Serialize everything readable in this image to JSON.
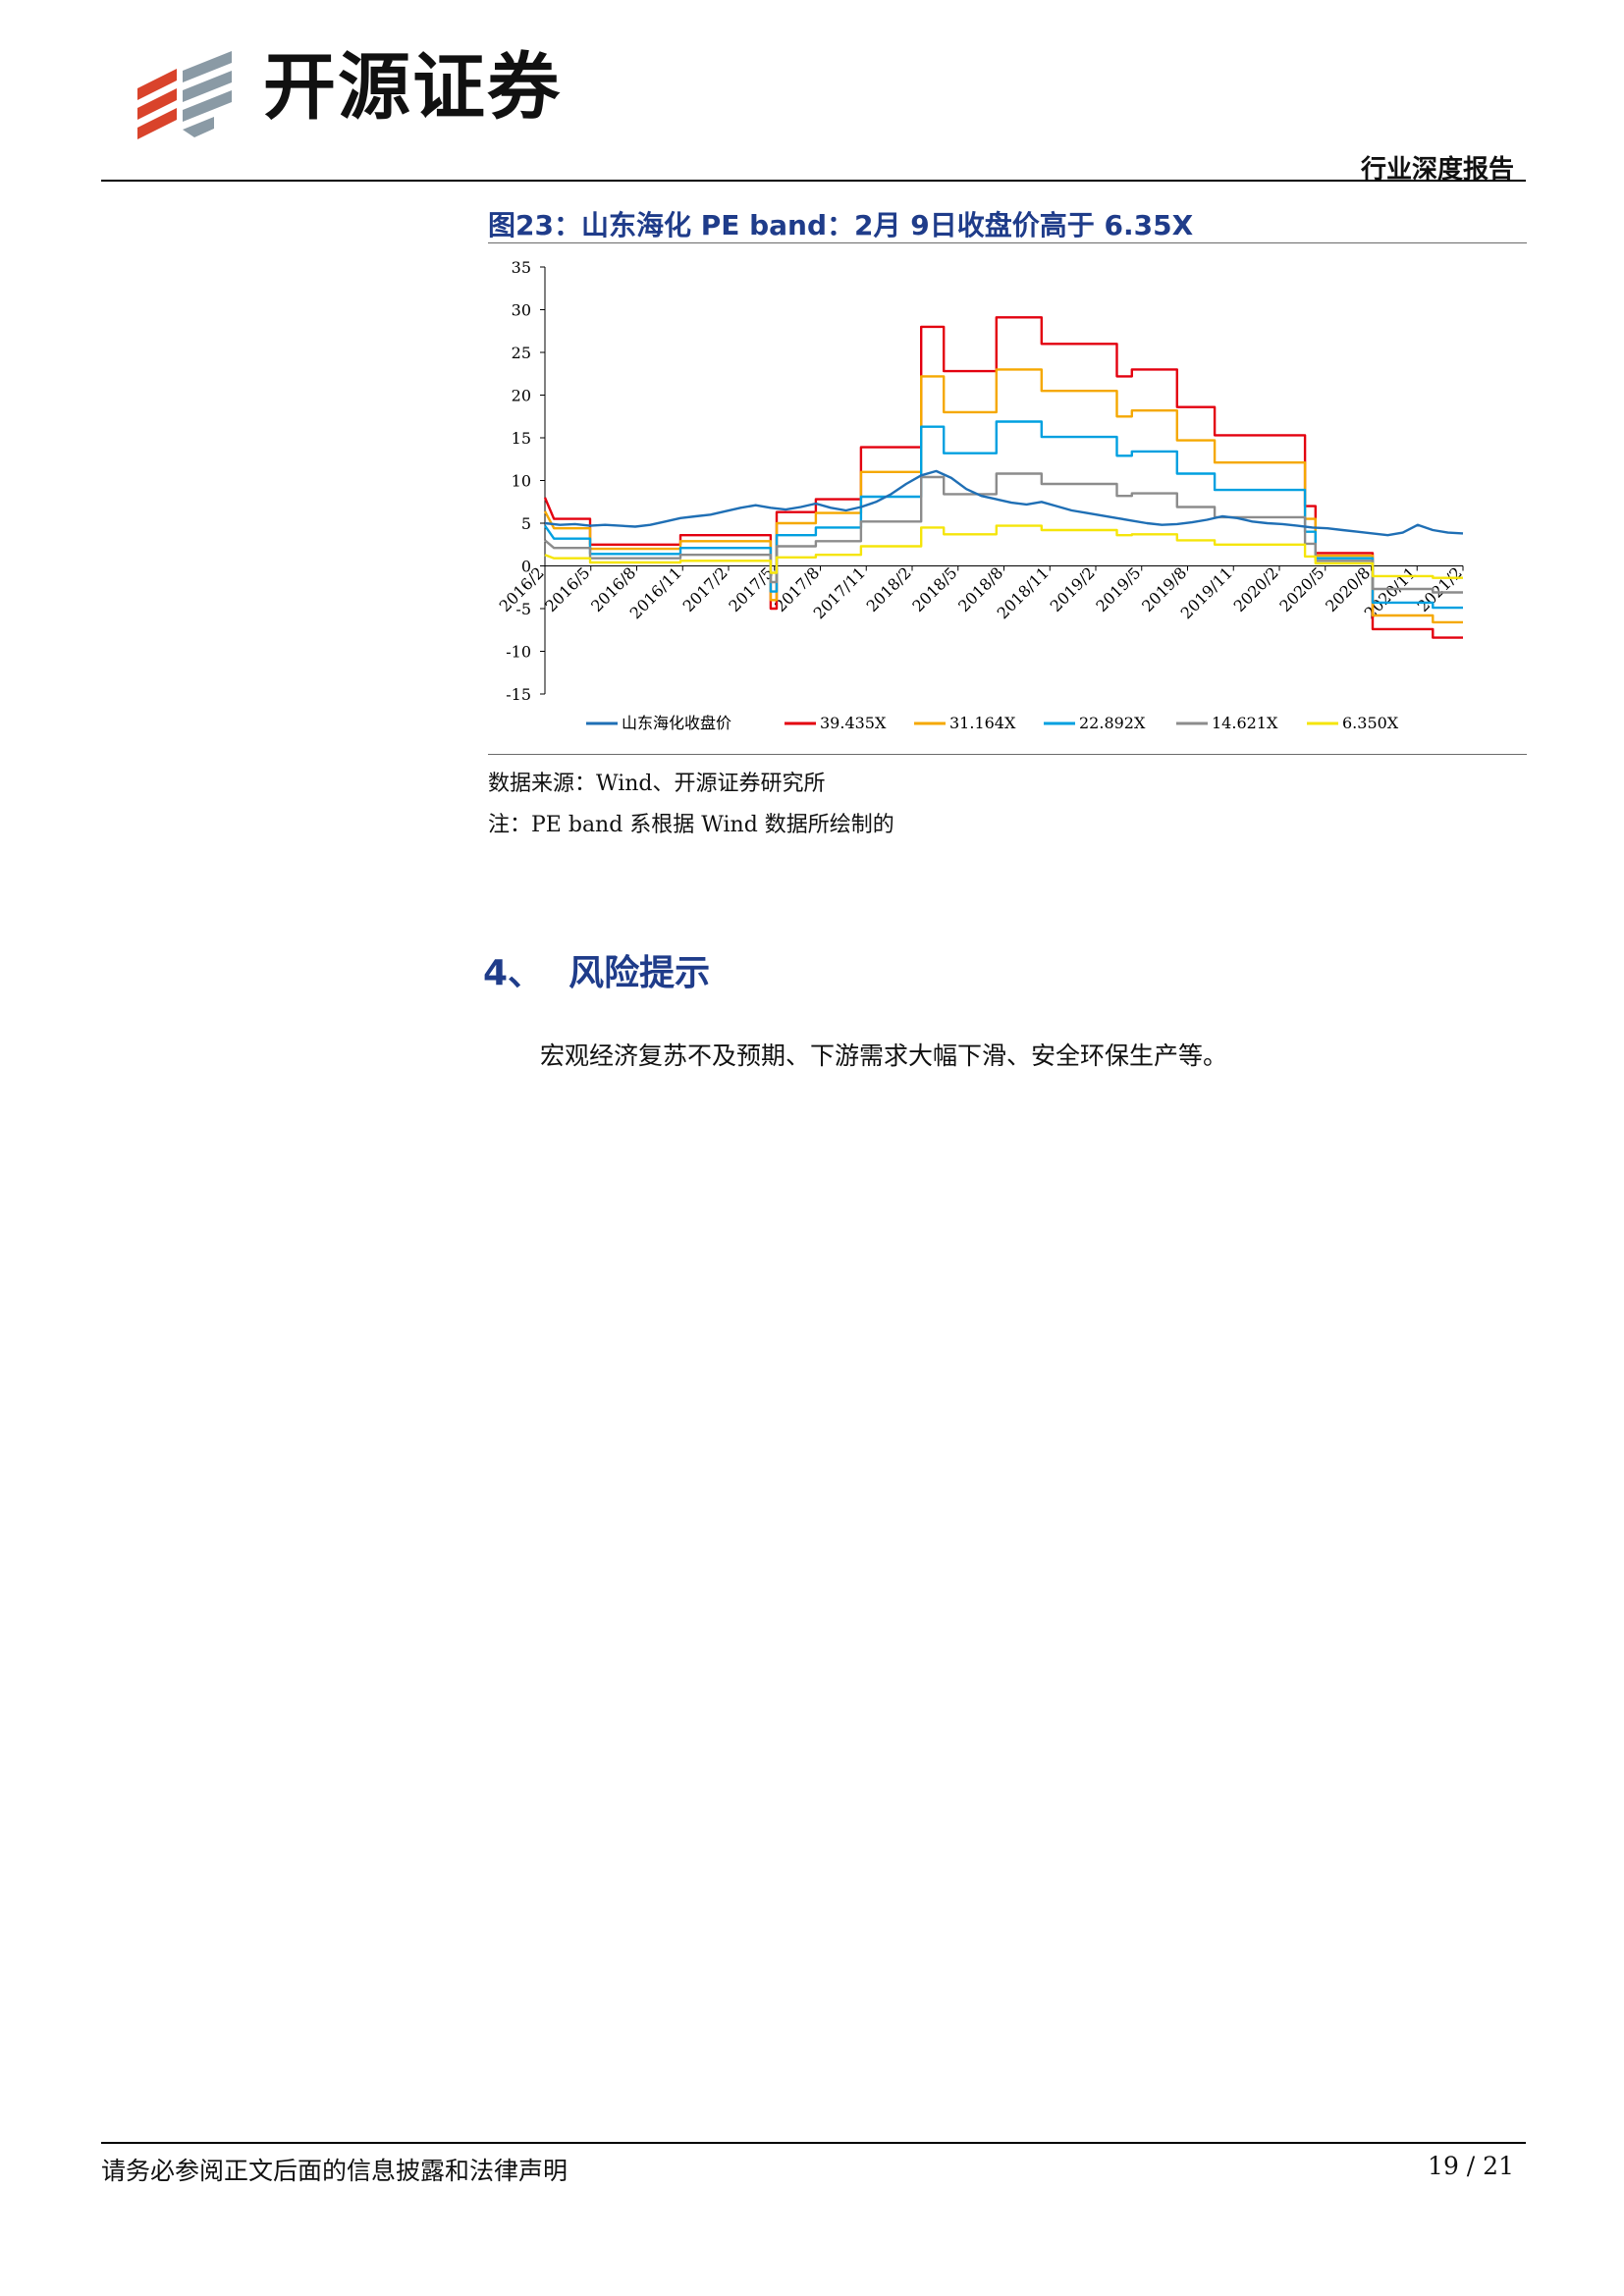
{
  "header": {
    "brand": "开源证券",
    "report_type": "行业深度报告"
  },
  "figure": {
    "title": "图23：山东海化 PE band：2月 9日收盘价高于 6.35X",
    "source": "数据来源：Wind、开源证券研究所",
    "note": "注：PE band 系根据 Wind 数据所绘制的"
  },
  "section": {
    "number": "4、",
    "title": "风险提示",
    "body": "宏观经济复苏不及预期、下游需求大幅下滑、安全环保生产等。"
  },
  "footer": {
    "disclaimer": "请务必参阅正文后面的信息披露和法律声明",
    "page": "19 / 21"
  },
  "colors": {
    "title_blue": "#1f3c8a",
    "series": [
      "#1f6fb5",
      "#e3000f",
      "#f5a800",
      "#00a0e0",
      "#8c8c8c",
      "#f5e50a"
    ]
  },
  "chart_data": {
    "type": "line",
    "ylim": [
      -15,
      35
    ],
    "yticks": [
      -15,
      -10,
      -5,
      0,
      5,
      10,
      15,
      20,
      25,
      30,
      35
    ],
    "x_tick_labels": [
      "2016/2",
      "2016/5",
      "2016/8",
      "2016/11",
      "2017/2",
      "2017/5",
      "2017/8",
      "2017/11",
      "2018/2",
      "2018/5",
      "2018/8",
      "2018/11",
      "2019/2",
      "2019/5",
      "2019/8",
      "2019/11",
      "2020/2",
      "2020/5",
      "2020/8",
      "2020/11",
      "2021/2"
    ],
    "x_range": [
      0,
      61
    ],
    "series": [
      {
        "name": "山东海化收盘价",
        "points": [
          [
            0,
            5.0
          ],
          [
            1,
            4.8
          ],
          [
            2,
            4.9
          ],
          [
            3,
            4.7
          ],
          [
            4,
            4.8
          ],
          [
            6,
            4.6
          ],
          [
            7,
            4.8
          ],
          [
            8,
            5.2
          ],
          [
            9,
            5.6
          ],
          [
            10,
            5.8
          ],
          [
            11,
            6.0
          ],
          [
            12,
            6.4
          ],
          [
            13,
            6.8
          ],
          [
            14,
            7.1
          ],
          [
            15,
            6.8
          ],
          [
            16,
            6.6
          ],
          [
            17,
            6.9
          ],
          [
            18,
            7.3
          ],
          [
            19,
            6.8
          ],
          [
            20,
            6.5
          ],
          [
            21,
            6.9
          ],
          [
            22,
            7.5
          ],
          [
            23,
            8.4
          ],
          [
            24,
            9.6
          ],
          [
            25,
            10.6
          ],
          [
            26,
            11.1
          ],
          [
            27,
            10.3
          ],
          [
            28,
            9.0
          ],
          [
            29,
            8.2
          ],
          [
            30,
            7.8
          ],
          [
            31,
            7.4
          ],
          [
            32,
            7.2
          ],
          [
            33,
            7.5
          ],
          [
            34,
            7.0
          ],
          [
            35,
            6.5
          ],
          [
            36,
            6.2
          ],
          [
            37,
            5.9
          ],
          [
            38,
            5.6
          ],
          [
            39,
            5.3
          ],
          [
            40,
            5.0
          ],
          [
            41,
            4.8
          ],
          [
            42,
            4.9
          ],
          [
            43,
            5.1
          ],
          [
            44,
            5.4
          ],
          [
            45,
            5.8
          ],
          [
            46,
            5.6
          ],
          [
            47,
            5.2
          ],
          [
            48,
            5.0
          ],
          [
            49,
            4.9
          ],
          [
            50,
            4.7
          ],
          [
            51,
            4.5
          ],
          [
            52,
            4.4
          ],
          [
            53,
            4.2
          ],
          [
            54,
            4.0
          ],
          [
            55,
            3.8
          ],
          [
            56,
            3.6
          ],
          [
            57,
            3.9
          ],
          [
            58,
            4.8
          ],
          [
            59,
            4.2
          ],
          [
            60,
            3.9
          ],
          [
            61,
            3.8
          ]
        ]
      },
      {
        "name": "39.435X",
        "points": [
          [
            0,
            8.0
          ],
          [
            0.6,
            5.5
          ],
          [
            3,
            5.5
          ],
          [
            3,
            2.5
          ],
          [
            9,
            2.5
          ],
          [
            9,
            3.6
          ],
          [
            15,
            3.6
          ],
          [
            15,
            0
          ],
          [
            15,
            -5.0
          ],
          [
            15.4,
            -5.0
          ],
          [
            15.4,
            6.3
          ],
          [
            18,
            6.3
          ],
          [
            18,
            7.8
          ],
          [
            21,
            7.8
          ],
          [
            21,
            13.9
          ],
          [
            25,
            13.9
          ],
          [
            25,
            28.0
          ],
          [
            26.5,
            28.0
          ],
          [
            26.5,
            22.8
          ],
          [
            30,
            22.8
          ],
          [
            30,
            29.1
          ],
          [
            33,
            29.1
          ],
          [
            33,
            26.0
          ],
          [
            38,
            26.0
          ],
          [
            38,
            22.2
          ],
          [
            39,
            22.2
          ],
          [
            39,
            23.0
          ],
          [
            42,
            23.0
          ],
          [
            42,
            18.6
          ],
          [
            44.5,
            18.6
          ],
          [
            44.5,
            15.3
          ],
          [
            50.5,
            15.3
          ],
          [
            50.5,
            7.0
          ],
          [
            51.2,
            7.0
          ],
          [
            51.2,
            1.5
          ],
          [
            55,
            1.5
          ],
          [
            55,
            -7.4
          ],
          [
            59,
            -7.4
          ],
          [
            59,
            -8.4
          ],
          [
            61,
            -8.4
          ]
        ]
      },
      {
        "name": "31.164X",
        "points": [
          [
            0,
            6.4
          ],
          [
            0.6,
            4.4
          ],
          [
            3,
            4.4
          ],
          [
            3,
            2.0
          ],
          [
            9,
            2.0
          ],
          [
            9,
            2.9
          ],
          [
            15,
            2.9
          ],
          [
            15,
            0
          ],
          [
            15,
            -4.0
          ],
          [
            15.4,
            -4.0
          ],
          [
            15.4,
            5.0
          ],
          [
            18,
            5.0
          ],
          [
            18,
            6.2
          ],
          [
            21,
            6.2
          ],
          [
            21,
            11.0
          ],
          [
            25,
            11.0
          ],
          [
            25,
            22.2
          ],
          [
            26.5,
            22.2
          ],
          [
            26.5,
            18.0
          ],
          [
            30,
            18.0
          ],
          [
            30,
            23.0
          ],
          [
            33,
            23.0
          ],
          [
            33,
            20.5
          ],
          [
            38,
            20.5
          ],
          [
            38,
            17.5
          ],
          [
            39,
            17.5
          ],
          [
            39,
            18.2
          ],
          [
            42,
            18.2
          ],
          [
            42,
            14.7
          ],
          [
            44.5,
            14.7
          ],
          [
            44.5,
            12.1
          ],
          [
            50.5,
            12.1
          ],
          [
            50.5,
            5.5
          ],
          [
            51.2,
            5.5
          ],
          [
            51.2,
            1.2
          ],
          [
            55,
            1.2
          ],
          [
            55,
            -5.8
          ],
          [
            59,
            -5.8
          ],
          [
            59,
            -6.6
          ],
          [
            61,
            -6.6
          ]
        ]
      },
      {
        "name": "22.892X",
        "points": [
          [
            0,
            4.7
          ],
          [
            0.6,
            3.2
          ],
          [
            3,
            3.2
          ],
          [
            3,
            1.4
          ],
          [
            9,
            1.4
          ],
          [
            9,
            2.1
          ],
          [
            15,
            2.1
          ],
          [
            15,
            0
          ],
          [
            15,
            -3.0
          ],
          [
            15.4,
            -3.0
          ],
          [
            15.4,
            3.6
          ],
          [
            18,
            3.6
          ],
          [
            18,
            4.5
          ],
          [
            21,
            4.5
          ],
          [
            21,
            8.1
          ],
          [
            25,
            8.1
          ],
          [
            25,
            16.3
          ],
          [
            26.5,
            16.3
          ],
          [
            26.5,
            13.2
          ],
          [
            30,
            13.2
          ],
          [
            30,
            16.9
          ],
          [
            33,
            16.9
          ],
          [
            33,
            15.1
          ],
          [
            38,
            15.1
          ],
          [
            38,
            12.9
          ],
          [
            39,
            12.9
          ],
          [
            39,
            13.4
          ],
          [
            42,
            13.4
          ],
          [
            42,
            10.8
          ],
          [
            44.5,
            10.8
          ],
          [
            44.5,
            8.9
          ],
          [
            50.5,
            8.9
          ],
          [
            50.5,
            4.0
          ],
          [
            51.2,
            4.0
          ],
          [
            51.2,
            0.9
          ],
          [
            55,
            0.9
          ],
          [
            55,
            -4.3
          ],
          [
            59,
            -4.3
          ],
          [
            59,
            -4.9
          ],
          [
            61,
            -4.9
          ]
        ]
      },
      {
        "name": "14.621X",
        "points": [
          [
            0,
            3.0
          ],
          [
            0.6,
            2.1
          ],
          [
            3,
            2.1
          ],
          [
            3,
            0.9
          ],
          [
            9,
            0.9
          ],
          [
            9,
            1.3
          ],
          [
            15,
            1.3
          ],
          [
            15,
            0
          ],
          [
            15,
            -1.9
          ],
          [
            15.4,
            -1.9
          ],
          [
            15.4,
            2.3
          ],
          [
            18,
            2.3
          ],
          [
            18,
            2.9
          ],
          [
            21,
            2.9
          ],
          [
            21,
            5.2
          ],
          [
            25,
            5.2
          ],
          [
            25,
            10.4
          ],
          [
            26.5,
            10.4
          ],
          [
            26.5,
            8.4
          ],
          [
            30,
            8.4
          ],
          [
            30,
            10.8
          ],
          [
            33,
            10.8
          ],
          [
            33,
            9.6
          ],
          [
            38,
            9.6
          ],
          [
            38,
            8.2
          ],
          [
            39,
            8.2
          ],
          [
            39,
            8.5
          ],
          [
            42,
            8.5
          ],
          [
            42,
            6.9
          ],
          [
            44.5,
            6.9
          ],
          [
            44.5,
            5.7
          ],
          [
            50.5,
            5.7
          ],
          [
            50.5,
            2.6
          ],
          [
            51.2,
            2.6
          ],
          [
            51.2,
            0.6
          ],
          [
            55,
            0.6
          ],
          [
            55,
            -2.7
          ],
          [
            59,
            -2.7
          ],
          [
            59,
            -3.1
          ],
          [
            61,
            -3.1
          ]
        ]
      },
      {
        "name": "6.350X",
        "points": [
          [
            0,
            1.3
          ],
          [
            0.6,
            0.9
          ],
          [
            3,
            0.9
          ],
          [
            3,
            0.4
          ],
          [
            9,
            0.4
          ],
          [
            9,
            0.6
          ],
          [
            15,
            0.6
          ],
          [
            15,
            0
          ],
          [
            15,
            -0.8
          ],
          [
            15.4,
            -0.8
          ],
          [
            15.4,
            1.0
          ],
          [
            18,
            1.0
          ],
          [
            18,
            1.3
          ],
          [
            21,
            1.3
          ],
          [
            21,
            2.3
          ],
          [
            25,
            2.3
          ],
          [
            25,
            4.5
          ],
          [
            26.5,
            4.5
          ],
          [
            26.5,
            3.7
          ],
          [
            30,
            3.7
          ],
          [
            30,
            4.7
          ],
          [
            33,
            4.7
          ],
          [
            33,
            4.2
          ],
          [
            38,
            4.2
          ],
          [
            38,
            3.6
          ],
          [
            39,
            3.6
          ],
          [
            39,
            3.7
          ],
          [
            42,
            3.7
          ],
          [
            42,
            3.0
          ],
          [
            44.5,
            3.0
          ],
          [
            44.5,
            2.5
          ],
          [
            50.5,
            2.5
          ],
          [
            50.5,
            1.1
          ],
          [
            51.2,
            1.1
          ],
          [
            51.2,
            0.3
          ],
          [
            55,
            0.3
          ],
          [
            55,
            -1.2
          ],
          [
            59,
            -1.2
          ],
          [
            59,
            -1.4
          ],
          [
            61,
            -1.4
          ]
        ]
      }
    ]
  }
}
